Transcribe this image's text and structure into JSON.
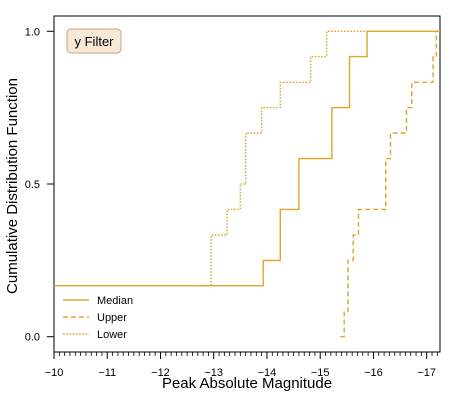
{
  "chart_data": {
    "type": "line",
    "step": "post",
    "title": "",
    "xlabel": "Peak Absolute Magnitude",
    "ylabel": "Cumulative Distribution Function",
    "xlim": [
      -10,
      -17.25
    ],
    "x_inverted": true,
    "ylim": [
      -0.05,
      1.05
    ],
    "xticks": [
      -10,
      -11,
      -12,
      -13,
      -14,
      -15,
      -16,
      -17
    ],
    "xtick_labels": [
      "−10",
      "−11",
      "−12",
      "−13",
      "−14",
      "−15",
      "−16",
      "−17"
    ],
    "yticks": [
      0.0,
      0.5,
      1.0
    ],
    "ytick_labels": [
      "0.0",
      "0.5",
      "1.0"
    ],
    "grid": false,
    "legend_position": "bottom-left",
    "filter_label": "y Filter",
    "colors": {
      "line": "#e0a52e",
      "badge_bg": "#f8e8d6",
      "badge_border": "#c9a27a"
    },
    "series": [
      {
        "name": "Median",
        "style": "solid",
        "x": [
          -10,
          -13.93,
          -14.25,
          -14.6,
          -15.22,
          -15.55,
          -15.88,
          -17.25
        ],
        "y": [
          0.167,
          0.25,
          0.417,
          0.583,
          0.75,
          0.917,
          1.0,
          1.0
        ]
      },
      {
        "name": "Upper",
        "style": "dashed",
        "x": [
          -15.38,
          -15.45,
          -15.52,
          -15.62,
          -15.72,
          -16.23,
          -16.32,
          -16.62,
          -16.72,
          -17.12,
          -17.18,
          -17.25
        ],
        "y": [
          0.0,
          0.083,
          0.25,
          0.333,
          0.417,
          0.583,
          0.667,
          0.75,
          0.833,
          0.917,
          1.0,
          1.0
        ]
      },
      {
        "name": "Lower",
        "style": "dotted",
        "x": [
          -12.65,
          -12.95,
          -13.25,
          -13.5,
          -13.6,
          -13.9,
          -14.25,
          -14.82,
          -15.12,
          -15.5,
          -17.25
        ],
        "y": [
          0.167,
          0.333,
          0.417,
          0.5,
          0.667,
          0.75,
          0.833,
          0.917,
          1.0,
          1.0,
          1.0
        ]
      }
    ]
  }
}
